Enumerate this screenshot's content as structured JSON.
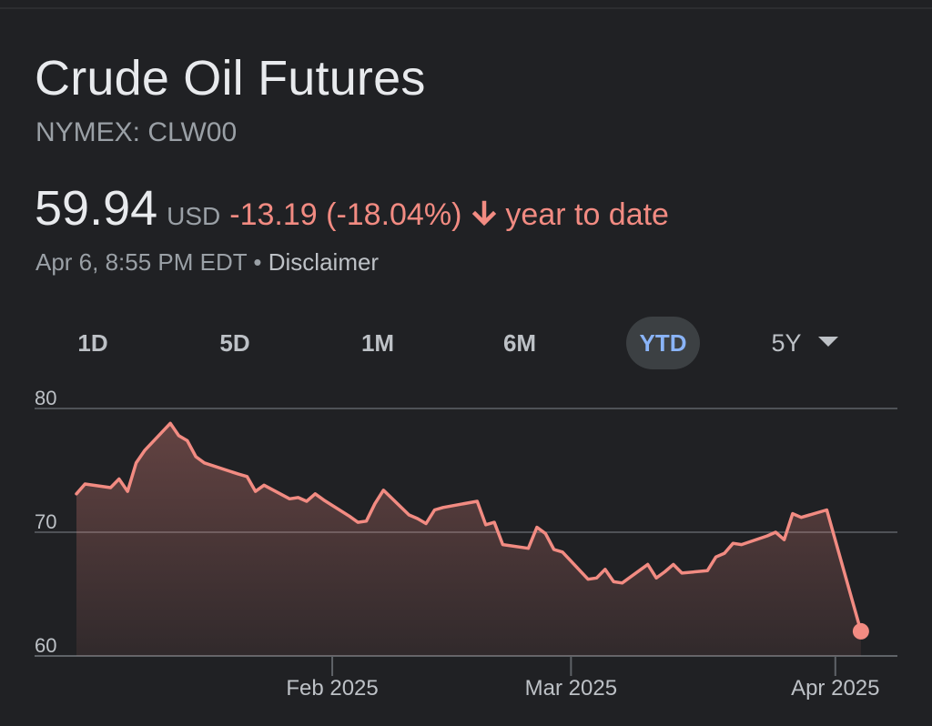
{
  "header": {
    "title": "Crude Oil Futures",
    "ticker": "NYMEX: CLW00"
  },
  "quote": {
    "price": "59.94",
    "currency": "USD",
    "change": "-13.19 (-18.04%)",
    "direction_icon": "arrow-down-icon",
    "period_label": "year to date",
    "timestamp": "Apr 6, 8:55 PM EDT",
    "separator": "•",
    "disclaimer": "Disclaimer"
  },
  "range_tabs": [
    {
      "label": "1D",
      "active": false
    },
    {
      "label": "5D",
      "active": false
    },
    {
      "label": "1M",
      "active": false
    },
    {
      "label": "6M",
      "active": false
    },
    {
      "label": "YTD",
      "active": true
    },
    {
      "label": "5Y",
      "active": false,
      "dropdown": true
    }
  ],
  "colors": {
    "background": "#202124",
    "line": "#f28b82",
    "active_tab_text": "#8ab4f8",
    "active_tab_bg": "#3c4043",
    "gridline": "#5f6368",
    "axis_text": "#bdc1c6"
  },
  "chart_data": {
    "type": "area",
    "title": "",
    "xlabel": "",
    "ylabel": "",
    "ylim": [
      60,
      80
    ],
    "xlim": [
      "2025-01-02",
      "2025-04-07"
    ],
    "y_ticks": [
      80,
      70,
      60
    ],
    "x_ticks": [
      {
        "date": "2025-02-01",
        "label": "Feb 2025"
      },
      {
        "date": "2025-03-01",
        "label": "Mar 2025"
      },
      {
        "date": "2025-04-01",
        "label": "Apr 2025"
      }
    ],
    "grid": true,
    "legend": "none",
    "series": [
      {
        "values": [
          [
            "2025-01-02",
            73.1
          ],
          [
            "2025-01-03",
            73.9
          ],
          [
            "2025-01-06",
            73.6
          ],
          [
            "2025-01-07",
            74.3
          ],
          [
            "2025-01-08",
            73.3
          ],
          [
            "2025-01-09",
            75.6
          ],
          [
            "2025-01-10",
            76.6
          ],
          [
            "2025-01-13",
            78.8
          ],
          [
            "2025-01-14",
            77.8
          ],
          [
            "2025-01-15",
            77.4
          ],
          [
            "2025-01-16",
            76.1
          ],
          [
            "2025-01-17",
            75.6
          ],
          [
            "2025-01-21",
            74.7
          ],
          [
            "2025-01-22",
            74.5
          ],
          [
            "2025-01-23",
            73.3
          ],
          [
            "2025-01-24",
            73.8
          ],
          [
            "2025-01-27",
            72.7
          ],
          [
            "2025-01-28",
            72.8
          ],
          [
            "2025-01-29",
            72.5
          ],
          [
            "2025-01-30",
            73.1
          ],
          [
            "2025-01-31",
            72.6
          ],
          [
            "2025-02-03",
            71.3
          ],
          [
            "2025-02-04",
            70.8
          ],
          [
            "2025-02-05",
            70.9
          ],
          [
            "2025-02-06",
            72.3
          ],
          [
            "2025-02-07",
            73.4
          ],
          [
            "2025-02-10",
            71.4
          ],
          [
            "2025-02-11",
            71.1
          ],
          [
            "2025-02-12",
            70.7
          ],
          [
            "2025-02-13",
            71.8
          ],
          [
            "2025-02-14",
            72.0
          ],
          [
            "2025-02-18",
            72.5
          ],
          [
            "2025-02-19",
            70.6
          ],
          [
            "2025-02-20",
            70.8
          ],
          [
            "2025-02-21",
            69.0
          ],
          [
            "2025-02-24",
            68.7
          ],
          [
            "2025-02-25",
            70.4
          ],
          [
            "2025-02-26",
            69.9
          ],
          [
            "2025-02-27",
            68.6
          ],
          [
            "2025-02-28",
            68.4
          ],
          [
            "2025-03-03",
            66.2
          ],
          [
            "2025-03-04",
            66.3
          ],
          [
            "2025-03-05",
            67.0
          ],
          [
            "2025-03-06",
            66.0
          ],
          [
            "2025-03-07",
            65.9
          ],
          [
            "2025-03-10",
            67.4
          ],
          [
            "2025-03-11",
            66.3
          ],
          [
            "2025-03-12",
            66.8
          ],
          [
            "2025-03-13",
            67.4
          ],
          [
            "2025-03-14",
            66.7
          ],
          [
            "2025-03-17",
            66.9
          ],
          [
            "2025-03-18",
            68.0
          ],
          [
            "2025-03-19",
            68.3
          ],
          [
            "2025-03-20",
            69.1
          ],
          [
            "2025-03-21",
            69.0
          ],
          [
            "2025-03-24",
            69.7
          ],
          [
            "2025-03-25",
            70.0
          ],
          [
            "2025-03-26",
            69.4
          ],
          [
            "2025-03-27",
            71.5
          ],
          [
            "2025-03-28",
            71.2
          ],
          [
            "2025-03-31",
            71.8
          ],
          [
            "2025-04-04",
            61.99
          ]
        ]
      }
    ]
  }
}
